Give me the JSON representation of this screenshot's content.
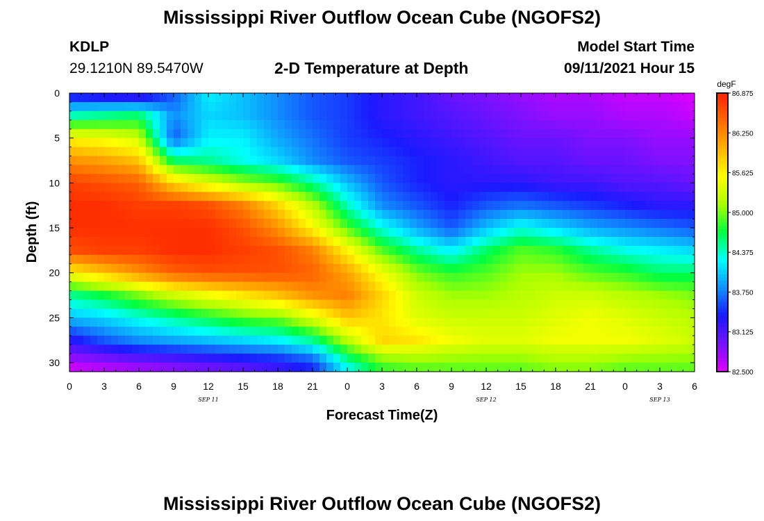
{
  "page": {
    "title": "Mississippi River Outflow Ocean Cube (NGOFS2)",
    "footer_title": "Mississippi River Outflow Ocean Cube (NGOFS2)",
    "station_id": "KDLP",
    "station_coords": "29.1210N  89.5470W",
    "plot_title": "2-D Temperature at Depth",
    "model_start_label": "Model Start Time",
    "model_start_value": "09/11/2021 Hour 15"
  },
  "chart_data": {
    "type": "heatmap",
    "title": "2-D Temperature at Depth",
    "xlabel": "Forecast Time(Z)",
    "ylabel": "Depth (ft)",
    "x_ticks": [
      "0",
      "3",
      "6",
      "9",
      "12",
      "15",
      "18",
      "21",
      "0",
      "3",
      "6",
      "9",
      "12",
      "15",
      "18",
      "21",
      "0",
      "3",
      "6"
    ],
    "date_labels": [
      {
        "label": "SEP 11",
        "hour": 12
      },
      {
        "label": "SEP 12",
        "hour": 36
      },
      {
        "label": "SEP 13",
        "hour": 51
      }
    ],
    "x_range_hours": [
      0,
      54
    ],
    "y_ticks": [
      0,
      5,
      10,
      15,
      20,
      25,
      30
    ],
    "ylim": [
      0,
      31
    ],
    "y_inverted": true,
    "colorbar": {
      "unit": "degF",
      "ticks": [
        "86.875",
        "86.250",
        "85.625",
        "85.000",
        "84.375",
        "83.750",
        "83.125",
        "82.500"
      ],
      "min": 82.5,
      "max": 86.875,
      "colors": [
        "#dd00ff",
        "#7711ff",
        "#1a1aff",
        "#1090ff",
        "#00ffff",
        "#00ff40",
        "#aaff00",
        "#ffff00",
        "#ffb300",
        "#ff6a00",
        "#ff2200"
      ]
    },
    "temperature_field": {
      "depths_ft": [
        0,
        2.5,
        5,
        7.5,
        10,
        12.5,
        15,
        17.5,
        20,
        22.5,
        25,
        27.5,
        30,
        31
      ],
      "times_hours": [
        0,
        3,
        6,
        9,
        12,
        15,
        18,
        21,
        24,
        27,
        30,
        33,
        36,
        39,
        42,
        45,
        48,
        51,
        54
      ],
      "values_degF": [
        [
          83.2,
          83.1,
          83.0,
          83.6,
          84.2,
          84.0,
          83.8,
          83.6,
          83.5,
          83.3,
          83.2,
          83.0,
          82.9,
          82.8,
          82.7,
          82.7,
          82.6,
          82.6,
          82.5
        ],
        [
          84.4,
          84.5,
          84.6,
          83.8,
          84.1,
          84.0,
          83.8,
          83.6,
          83.5,
          83.3,
          83.2,
          83.1,
          83.0,
          82.9,
          82.8,
          82.8,
          82.7,
          82.7,
          82.6
        ],
        [
          85.6,
          85.5,
          85.3,
          83.6,
          84.2,
          84.2,
          83.9,
          83.7,
          83.5,
          83.4,
          83.3,
          83.2,
          83.1,
          83.0,
          83.0,
          82.9,
          82.9,
          82.8,
          82.8
        ],
        [
          86.2,
          86.1,
          85.9,
          84.6,
          84.5,
          84.3,
          84.1,
          83.8,
          83.6,
          83.5,
          83.4,
          83.3,
          83.2,
          83.1,
          83.1,
          83.0,
          83.0,
          82.9,
          82.9
        ],
        [
          86.7,
          86.6,
          86.5,
          85.8,
          85.4,
          85.1,
          84.9,
          84.5,
          84.0,
          83.6,
          83.4,
          83.3,
          83.3,
          83.3,
          83.2,
          83.2,
          83.1,
          83.1,
          83.0
        ],
        [
          86.8,
          86.8,
          86.7,
          86.7,
          86.6,
          86.3,
          85.8,
          85.2,
          84.4,
          83.8,
          83.6,
          83.4,
          83.6,
          83.7,
          83.6,
          83.5,
          83.4,
          83.3,
          83.3
        ],
        [
          86.8,
          86.8,
          86.8,
          86.8,
          86.8,
          86.6,
          86.2,
          85.6,
          84.9,
          84.3,
          83.9,
          83.6,
          84.0,
          84.3,
          84.1,
          83.9,
          83.8,
          83.7,
          83.6
        ],
        [
          86.6,
          86.7,
          86.7,
          86.8,
          86.8,
          86.7,
          86.6,
          86.3,
          85.6,
          84.9,
          84.5,
          84.2,
          84.6,
          84.9,
          84.8,
          84.5,
          84.3,
          84.2,
          84.1
        ],
        [
          85.6,
          85.9,
          86.2,
          86.5,
          86.6,
          86.6,
          86.6,
          86.5,
          86.1,
          85.5,
          85.0,
          84.8,
          84.9,
          85.1,
          85.1,
          84.9,
          84.8,
          84.6,
          84.6
        ],
        [
          84.5,
          84.7,
          85.0,
          85.3,
          85.5,
          85.7,
          85.9,
          86.2,
          86.3,
          85.8,
          85.3,
          85.1,
          85.1,
          85.2,
          85.3,
          85.3,
          85.2,
          85.1,
          85.0
        ],
        [
          84.0,
          84.1,
          84.3,
          84.5,
          84.7,
          84.9,
          85.0,
          85.4,
          85.9,
          85.7,
          85.4,
          85.3,
          85.3,
          85.3,
          85.4,
          85.5,
          85.4,
          85.3,
          85.2
        ],
        [
          83.3,
          83.6,
          83.8,
          83.9,
          84.0,
          84.1,
          84.2,
          84.5,
          85.2,
          85.8,
          85.7,
          85.5,
          85.4,
          85.4,
          85.5,
          85.5,
          85.5,
          85.4,
          85.3
        ],
        [
          82.7,
          82.8,
          82.9,
          83.0,
          83.1,
          83.2,
          83.3,
          83.5,
          84.4,
          84.9,
          85.0,
          85.0,
          85.0,
          85.0,
          85.1,
          85.1,
          85.0,
          85.0,
          85.0
        ],
        [
          82.5,
          82.6,
          82.7,
          82.8,
          82.9,
          83.0,
          83.2,
          83.4,
          84.2,
          84.8,
          84.9,
          84.9,
          84.9,
          84.9,
          85.0,
          85.0,
          84.9,
          84.9,
          84.9
        ]
      ]
    }
  }
}
